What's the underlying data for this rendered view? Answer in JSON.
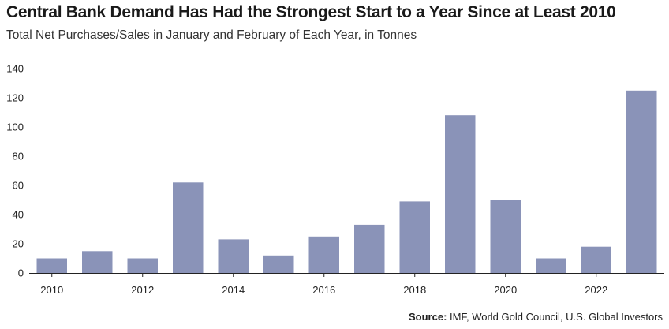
{
  "chart_data": {
    "type": "bar",
    "title": "Central Bank Demand Has Had the Strongest Start to a Year Since at Least 2010",
    "subtitle": "Total Net Purchases/Sales in January and February of Each Year, in Tonnes",
    "xlabel": "",
    "ylabel": "",
    "categories": [
      "2010",
      "2011",
      "2012",
      "2013",
      "2014",
      "2015",
      "2016",
      "2017",
      "2018",
      "2019",
      "2020",
      "2021",
      "2022",
      "2023"
    ],
    "values": [
      10,
      15,
      10,
      62,
      23,
      12,
      25,
      33,
      49,
      108,
      50,
      10,
      18,
      125
    ],
    "ylim": [
      0,
      140
    ],
    "yticks": [
      "0",
      "20",
      "40",
      "60",
      "80",
      "100",
      "120",
      "140"
    ],
    "xtick_labels": [
      "2010",
      "2012",
      "2014",
      "2016",
      "2018",
      "2020",
      "2022"
    ],
    "bar_color": "#8a93b8",
    "grid": false,
    "legend": "none"
  },
  "source": {
    "prefix": "Source:",
    "text": "IMF, World Gold Council, U.S. Global Investors"
  }
}
